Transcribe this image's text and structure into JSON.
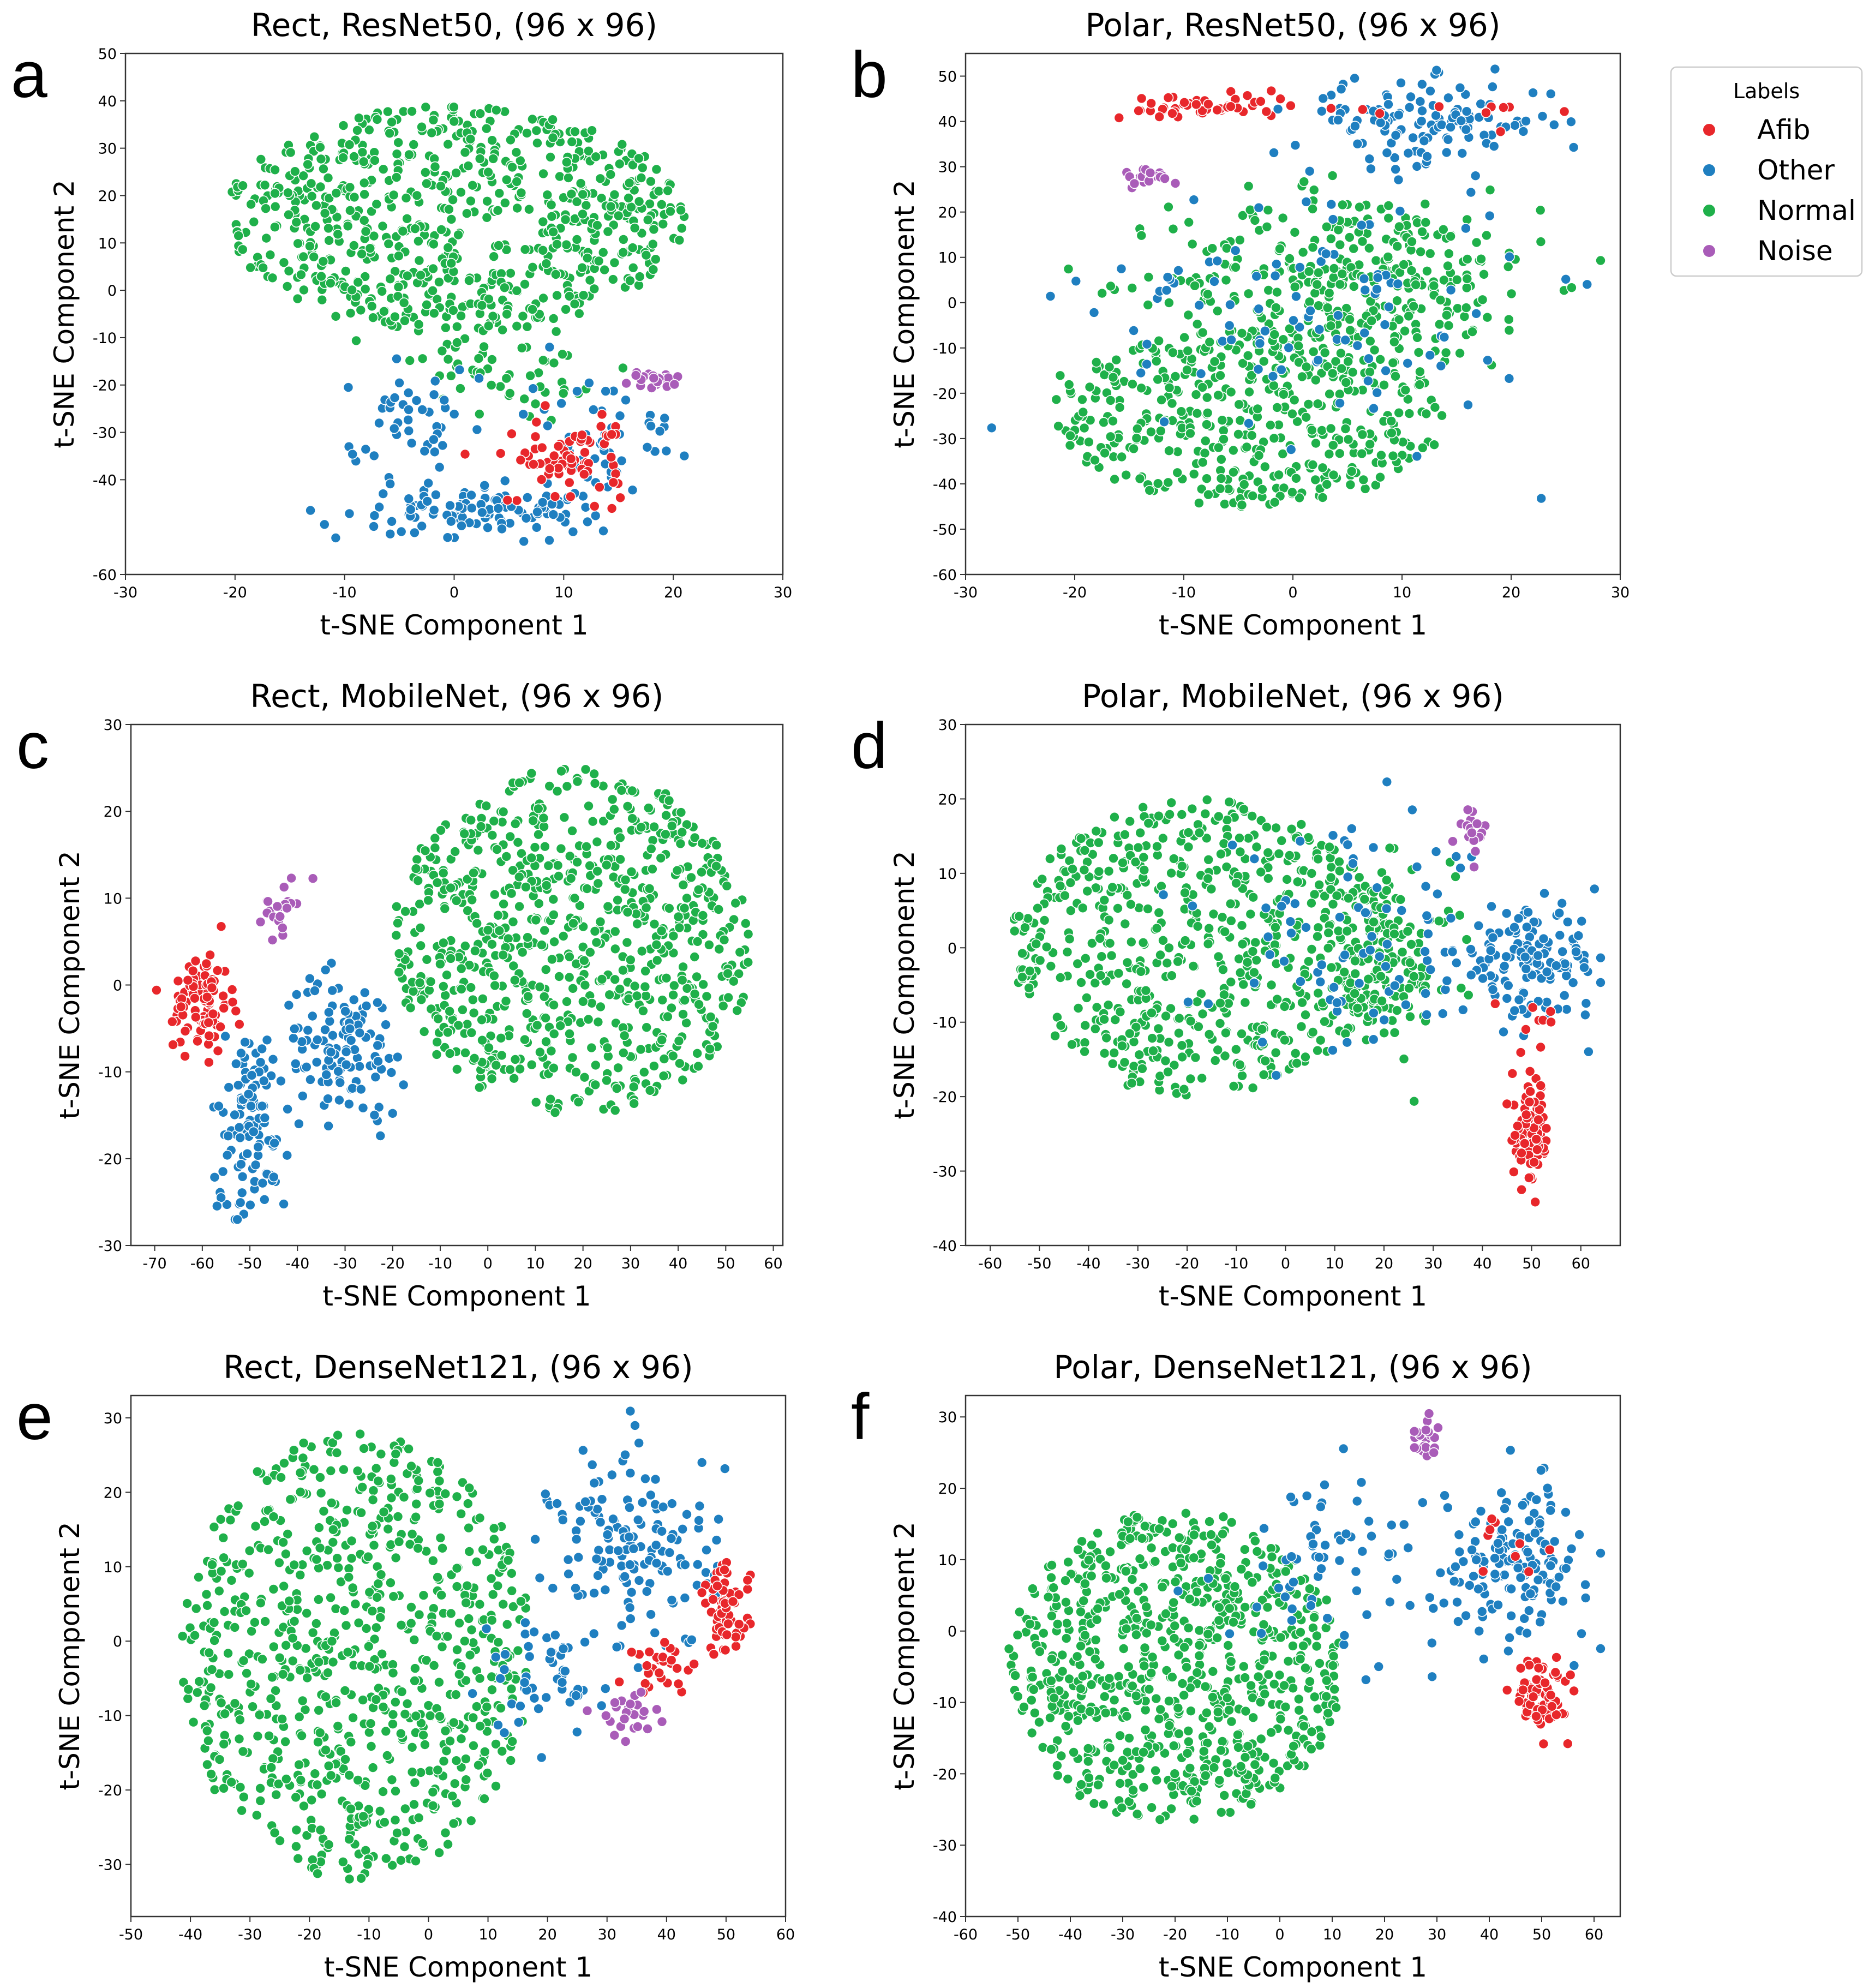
{
  "figure": {
    "legend": {
      "title": "Labels",
      "entries": [
        {
          "name": "Afib",
          "color": "#e8272b"
        },
        {
          "name": "Other",
          "color": "#1f7fc0"
        },
        {
          "name": "Normal",
          "color": "#1fb04a"
        },
        {
          "name": "Noise",
          "color": "#a95cb8"
        }
      ]
    }
  },
  "chart_data": [
    {
      "panel": "a",
      "type": "scatter",
      "title": "Rect, ResNet50, (96 x 96)",
      "xlabel": "t-SNE Component 1",
      "ylabel": "t-SNE Component 2",
      "xlim": [
        -30,
        30
      ],
      "ylim": [
        -60,
        50
      ],
      "xticks": [
        -30,
        -20,
        -10,
        0,
        10,
        20,
        30
      ],
      "yticks": [
        -60,
        -40,
        -30,
        -20,
        -10,
        0,
        10,
        20,
        30,
        40,
        50
      ],
      "n_points": {
        "Normal": 780,
        "Other": 210,
        "Afib": 75,
        "Noise": 20
      },
      "clusters": [
        {
          "label": "Normal",
          "shape": "ellipse",
          "center": [
            0,
            15
          ],
          "spread": [
            21,
            24
          ],
          "share": 0.93
        },
        {
          "label": "Normal",
          "shape": "ellipse",
          "center": [
            4,
            -18
          ],
          "spread": [
            9,
            10
          ],
          "share": 0.07
        },
        {
          "label": "Other",
          "shape": "ellipse",
          "center": [
            2,
            -46
          ],
          "spread": [
            11,
            6
          ],
          "share": 0.55
        },
        {
          "label": "Other",
          "shape": "ellipse",
          "center": [
            -4,
            -28
          ],
          "spread": [
            6,
            9
          ],
          "share": 0.2
        },
        {
          "label": "Other",
          "shape": "ellipse",
          "center": [
            14,
            -30
          ],
          "spread": [
            7,
            12
          ],
          "share": 0.25
        },
        {
          "label": "Afib",
          "shape": "ellipse",
          "center": [
            10,
            -36
          ],
          "spread": [
            6,
            8
          ],
          "share": 1.0
        },
        {
          "label": "Noise",
          "shape": "ellipse",
          "center": [
            18,
            -19
          ],
          "spread": [
            3,
            3
          ],
          "share": 1.0
        }
      ]
    },
    {
      "panel": "b",
      "type": "scatter",
      "title": "Polar, ResNet50, (96 x 96)",
      "xlabel": "t-SNE Component 1",
      "ylabel": "t-SNE Component 2",
      "xlim": [
        -30,
        30
      ],
      "ylim": [
        -60,
        55
      ],
      "xticks": [
        -30,
        -20,
        -10,
        0,
        10,
        20,
        30
      ],
      "yticks": [
        -60,
        -50,
        -40,
        -30,
        -20,
        -10,
        0,
        10,
        20,
        30,
        40,
        50
      ],
      "n_points": {
        "Normal": 780,
        "Other": 230,
        "Afib": 60,
        "Noise": 20
      },
      "clusters": [
        {
          "label": "Normal",
          "shape": "ellipse",
          "center": [
            -4,
            -25
          ],
          "spread": [
            18,
            20
          ],
          "share": 0.55
        },
        {
          "label": "Normal",
          "shape": "ellipse",
          "center": [
            6,
            5
          ],
          "spread": [
            17,
            20
          ],
          "share": 0.45
        },
        {
          "label": "Other",
          "shape": "ellipse",
          "center": [
            12,
            40
          ],
          "spread": [
            12,
            9
          ],
          "share": 0.55
        },
        {
          "label": "Other",
          "shape": "ellipse",
          "center": [
            2,
            0
          ],
          "spread": [
            20,
            30
          ],
          "share": 0.45
        },
        {
          "label": "Afib",
          "shape": "ellipse",
          "center": [
            -8,
            43
          ],
          "spread": [
            8,
            3
          ],
          "share": 0.85
        },
        {
          "label": "Afib",
          "shape": "ellipse",
          "center": [
            15,
            42
          ],
          "spread": [
            10,
            6
          ],
          "share": 0.15
        },
        {
          "label": "Noise",
          "shape": "ellipse",
          "center": [
            -13,
            28
          ],
          "spread": [
            3,
            2
          ],
          "share": 1.0
        }
      ]
    },
    {
      "panel": "c",
      "type": "scatter",
      "title": "Rect, MobileNet, (96 x 96)",
      "xlabel": "t-SNE Component 1",
      "ylabel": "t-SNE Component 2",
      "xlim": [
        -75,
        62
      ],
      "ylim": [
        -30,
        30
      ],
      "xticks": [
        -70,
        -60,
        -50,
        -40,
        -30,
        -20,
        -10,
        0,
        10,
        20,
        30,
        40,
        50,
        60
      ],
      "yticks": [
        -30,
        -20,
        -10,
        0,
        10,
        20,
        30
      ],
      "n_points": {
        "Normal": 780,
        "Other": 230,
        "Afib": 90,
        "Noise": 22
      },
      "clusters": [
        {
          "label": "Normal",
          "shape": "ellipse",
          "center": [
            18,
            5
          ],
          "spread": [
            38,
            20
          ],
          "share": 1.0
        },
        {
          "label": "Other",
          "shape": "ellipse",
          "center": [
            -50,
            -16
          ],
          "spread": [
            8,
            11
          ],
          "share": 0.5
        },
        {
          "label": "Other",
          "shape": "ellipse",
          "center": [
            -30,
            -7
          ],
          "spread": [
            13,
            8
          ],
          "share": 0.5
        },
        {
          "label": "Afib",
          "shape": "ellipse",
          "center": [
            -60,
            -2
          ],
          "spread": [
            6,
            6
          ],
          "share": 1.0
        },
        {
          "label": "Noise",
          "shape": "ellipse",
          "center": [
            -44,
            9
          ],
          "spread": [
            4,
            3
          ],
          "share": 1.0
        }
      ]
    },
    {
      "panel": "d",
      "type": "scatter",
      "title": "Polar, MobileNet, (96 x 96)",
      "xlabel": "t-SNE Component 1",
      "ylabel": "t-SNE Component 2",
      "xlim": [
        -65,
        68
      ],
      "ylim": [
        -40,
        30
      ],
      "xticks": [
        -60,
        -50,
        -40,
        -30,
        -20,
        -10,
        0,
        10,
        20,
        30,
        40,
        50,
        60
      ],
      "yticks": [
        -40,
        -30,
        -20,
        -10,
        0,
        10,
        20,
        30
      ],
      "n_points": {
        "Normal": 780,
        "Other": 220,
        "Afib": 90,
        "Noise": 20
      },
      "clusters": [
        {
          "label": "Normal",
          "shape": "ellipse",
          "center": [
            -18,
            0
          ],
          "spread": [
            38,
            20
          ],
          "share": 0.8
        },
        {
          "label": "Normal",
          "shape": "ellipse",
          "center": [
            20,
            -2
          ],
          "spread": [
            14,
            12
          ],
          "share": 0.2
        },
        {
          "label": "Other",
          "shape": "ellipse",
          "center": [
            50,
            -2
          ],
          "spread": [
            14,
            7
          ],
          "share": 0.6
        },
        {
          "label": "Other",
          "shape": "ellipse",
          "center": [
            15,
            0
          ],
          "spread": [
            30,
            15
          ],
          "share": 0.4
        },
        {
          "label": "Afib",
          "shape": "ellipse",
          "center": [
            50,
            -25
          ],
          "spread": [
            4,
            7
          ],
          "share": 0.9
        },
        {
          "label": "Afib",
          "shape": "ellipse",
          "center": [
            50,
            -10
          ],
          "spread": [
            5,
            4
          ],
          "share": 0.1
        },
        {
          "label": "Noise",
          "shape": "ellipse",
          "center": [
            38,
            16
          ],
          "spread": [
            3,
            3
          ],
          "share": 1.0
        }
      ]
    },
    {
      "panel": "e",
      "type": "scatter",
      "title": "Rect, DenseNet121, (96 x 96)",
      "xlabel": "t-SNE Component 1",
      "ylabel": "t-SNE Component 2",
      "xlim": [
        -50,
        60
      ],
      "ylim": [
        -37,
        33
      ],
      "xticks": [
        -50,
        -40,
        -30,
        -20,
        -10,
        0,
        10,
        20,
        30,
        40,
        50,
        60
      ],
      "yticks": [
        -30,
        -20,
        -10,
        0,
        10,
        20,
        30
      ],
      "n_points": {
        "Normal": 780,
        "Other": 200,
        "Afib": 90,
        "Noise": 25
      },
      "clusters": [
        {
          "label": "Normal",
          "shape": "ellipse",
          "center": [
            -12,
            -2
          ],
          "spread": [
            30,
            30
          ],
          "share": 1.0
        },
        {
          "label": "Other",
          "shape": "ellipse",
          "center": [
            35,
            12
          ],
          "spread": [
            14,
            14
          ],
          "share": 0.75
        },
        {
          "label": "Other",
          "shape": "ellipse",
          "center": [
            20,
            -5
          ],
          "spread": [
            10,
            8
          ],
          "share": 0.25
        },
        {
          "label": "Afib",
          "shape": "ellipse",
          "center": [
            50,
            4
          ],
          "spread": [
            4,
            6
          ],
          "share": 0.7
        },
        {
          "label": "Afib",
          "shape": "ellipse",
          "center": [
            40,
            -3
          ],
          "spread": [
            6,
            4
          ],
          "share": 0.3
        },
        {
          "label": "Noise",
          "shape": "ellipse",
          "center": [
            33,
            -10
          ],
          "spread": [
            6,
            3
          ],
          "share": 1.0
        }
      ]
    },
    {
      "panel": "f",
      "type": "scatter",
      "title": "Polar, DenseNet121, (96 x 96)",
      "xlabel": "t-SNE Component 1",
      "ylabel": "t-SNE Component 2",
      "xlim": [
        -60,
        65
      ],
      "ylim": [
        -40,
        33
      ],
      "xticks": [
        -60,
        -50,
        -40,
        -30,
        -20,
        -10,
        0,
        10,
        20,
        30,
        40,
        50,
        60
      ],
      "yticks": [
        -40,
        -30,
        -20,
        -10,
        0,
        10,
        20,
        30
      ],
      "n_points": {
        "Normal": 780,
        "Other": 220,
        "Afib": 85,
        "Noise": 22
      },
      "clusters": [
        {
          "label": "Normal",
          "shape": "ellipse",
          "center": [
            -20,
            -5
          ],
          "spread": [
            32,
            22
          ],
          "share": 1.0
        },
        {
          "label": "Other",
          "shape": "ellipse",
          "center": [
            45,
            10
          ],
          "spread": [
            14,
            10
          ],
          "share": 0.7
        },
        {
          "label": "Other",
          "shape": "ellipse",
          "center": [
            10,
            10
          ],
          "spread": [
            20,
            12
          ],
          "share": 0.3
        },
        {
          "label": "Afib",
          "shape": "ellipse",
          "center": [
            50,
            -9
          ],
          "spread": [
            5,
            5
          ],
          "share": 0.9
        },
        {
          "label": "Afib",
          "shape": "ellipse",
          "center": [
            45,
            12
          ],
          "spread": [
            8,
            5
          ],
          "share": 0.1
        },
        {
          "label": "Noise",
          "shape": "ellipse",
          "center": [
            27,
            27
          ],
          "spread": [
            3,
            3
          ],
          "share": 1.0
        }
      ]
    }
  ]
}
